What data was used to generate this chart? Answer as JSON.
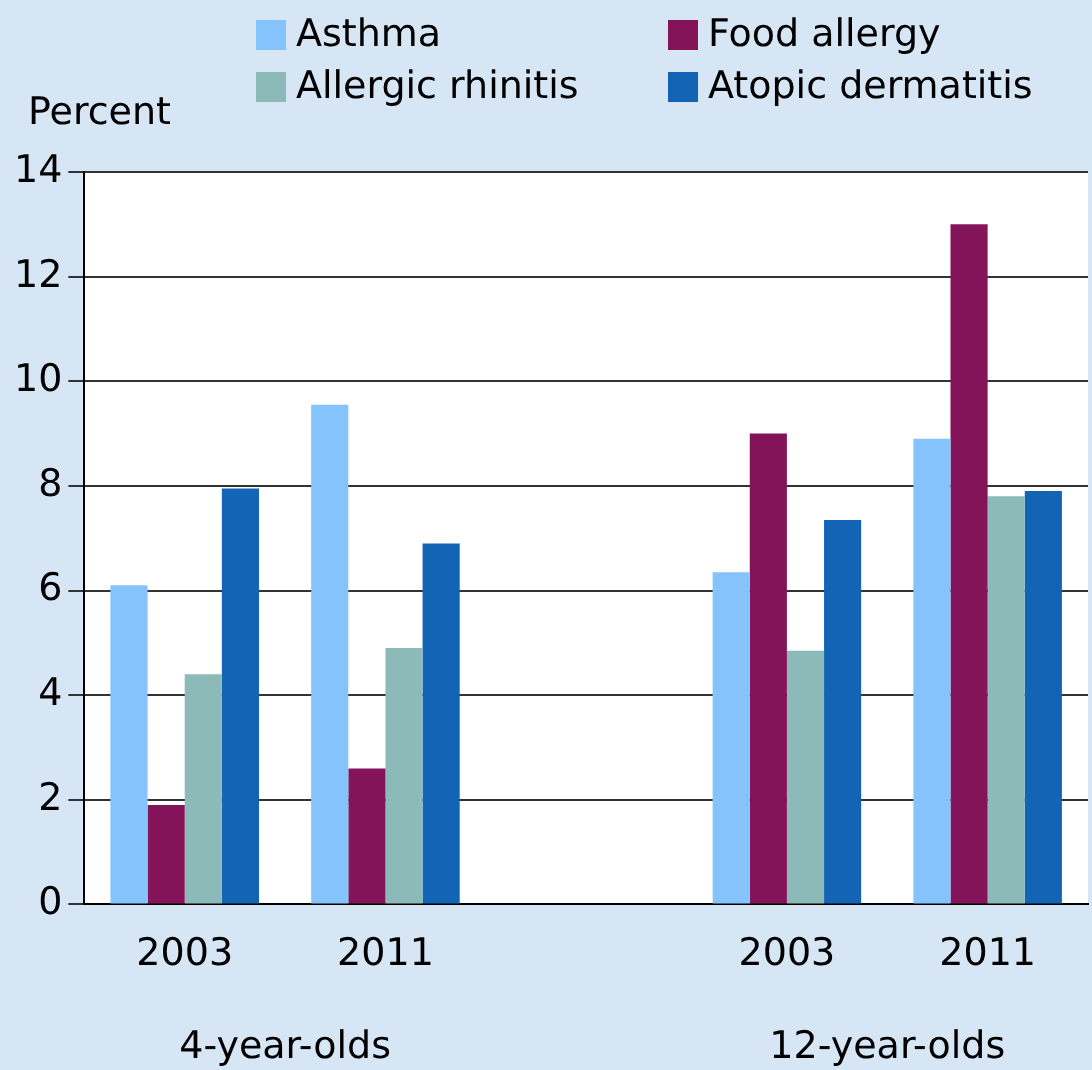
{
  "chart_data": {
    "type": "bar",
    "ylabel": "Percent",
    "categories": [
      "2003",
      "2011",
      null,
      "2003",
      "2011"
    ],
    "annotations": [
      "4-year-olds",
      "12-year-olds"
    ],
    "series": [
      {
        "name": "Asthma",
        "color": "#85c3fc",
        "values": [
          6.1,
          9.55,
          null,
          6.35,
          8.9
        ]
      },
      {
        "name": "Food allergy",
        "color": "#84145a",
        "values": [
          1.9,
          2.6,
          null,
          9.0,
          13.0
        ]
      },
      {
        "name": "Allergic rhinitis",
        "color": "#8cbab8",
        "values": [
          4.4,
          4.9,
          null,
          4.85,
          7.8
        ]
      },
      {
        "name": "Atopic dermatitis",
        "color": "#1464b5",
        "values": [
          7.95,
          6.9,
          null,
          7.35,
          7.9
        ]
      }
    ],
    "ylim": [
      0,
      14
    ],
    "yticks": [
      0,
      2,
      4,
      6,
      8,
      10,
      12,
      14
    ],
    "grid": "y",
    "legend": "top"
  }
}
